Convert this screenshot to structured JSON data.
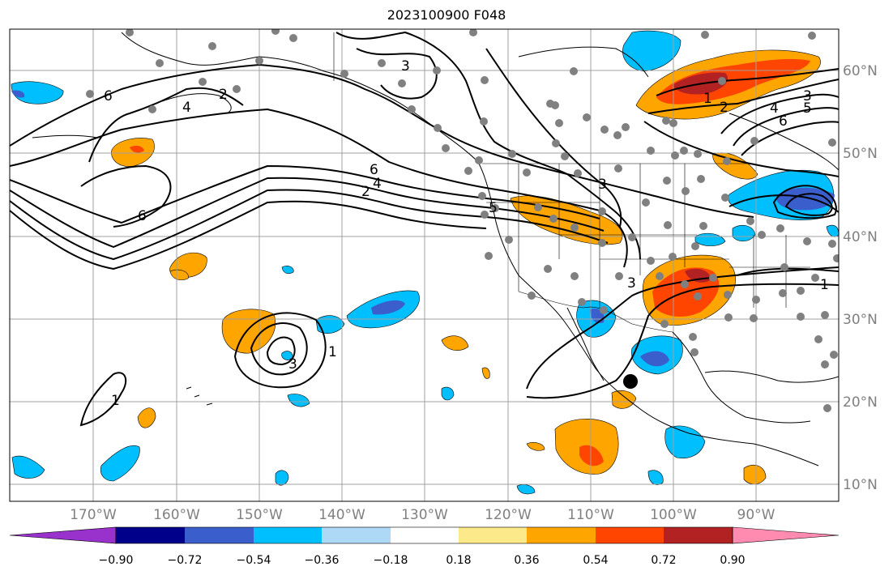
{
  "title": "2023100900 F048",
  "map": {
    "lon_labels": [
      "170°W",
      "160°W",
      "150°W",
      "140°W",
      "130°W",
      "120°W",
      "110°W",
      "100°W",
      "90°W"
    ],
    "lat_labels": [
      "60°N",
      "50°N",
      "40°N",
      "30°N",
      "20°N",
      "10°N"
    ],
    "contour_labels": [
      "6",
      "4",
      "2",
      "6",
      "3",
      "6",
      "4",
      "2",
      "5",
      "3",
      "3",
      "1",
      "1",
      "3",
      "1",
      "2",
      "3",
      "4",
      "5",
      "6",
      "1"
    ]
  },
  "colorbar": {
    "ticks": [
      "−0.90",
      "−0.72",
      "−0.54",
      "−0.36",
      "−0.18",
      "0.18",
      "0.36",
      "0.54",
      "0.72",
      "0.90"
    ],
    "colors": [
      "#9932cc",
      "#00008b",
      "#3a5fcd",
      "#00bfff",
      "#add8f6",
      "#ffffff",
      "#fbe98a",
      "#ffa500",
      "#ff4500",
      "#b22222",
      "#ff8cb0"
    ]
  }
}
